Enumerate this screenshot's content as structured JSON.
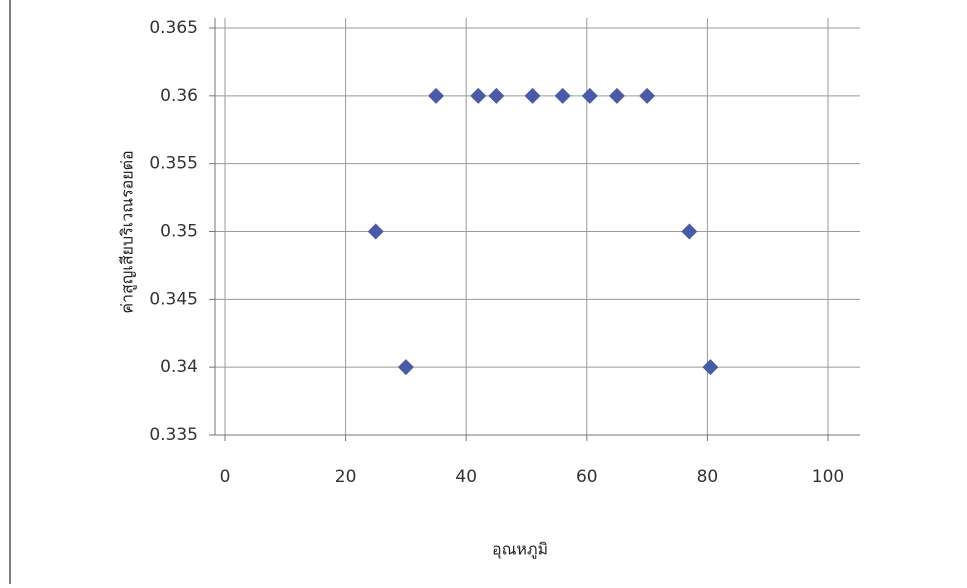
{
  "chart_data": {
    "type": "scatter",
    "x_label": "อุณหภูมิ",
    "y_label": "ค่าสูญเสียบริเวณรอยต่อ",
    "x": [
      25,
      30,
      35,
      42,
      45,
      51,
      56,
      60.5,
      65,
      70,
      77,
      80.5
    ],
    "values": [
      0.35,
      0.34,
      0.36,
      0.36,
      0.36,
      0.36,
      0.36,
      0.36,
      0.36,
      0.36,
      0.35,
      0.34
    ],
    "color": "#4b5aa6",
    "xlim": [
      0,
      100
    ],
    "xticks": [
      0,
      20,
      40,
      60,
      80,
      100
    ],
    "ylim": [
      0.335,
      0.365
    ],
    "yticks": [
      0.335,
      0.34,
      0.345,
      0.35,
      0.355,
      0.36,
      0.365
    ],
    "grid": true
  }
}
